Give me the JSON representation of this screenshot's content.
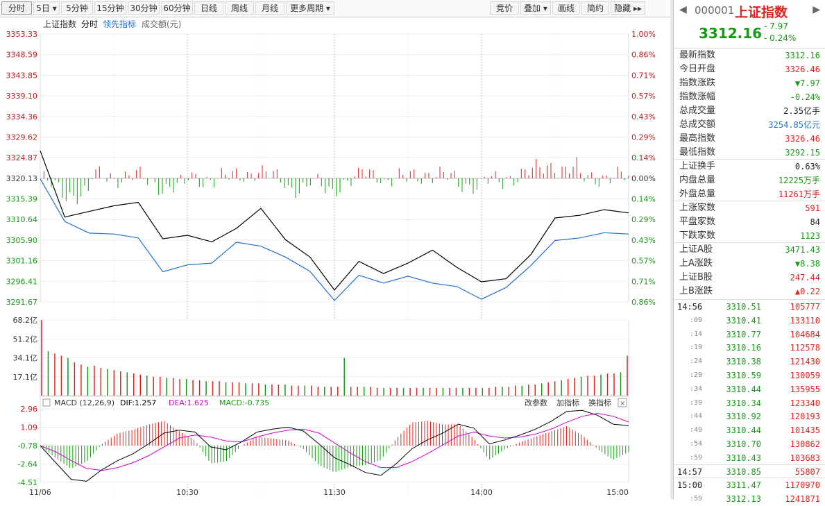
{
  "toolbar": {
    "left": [
      "分时",
      "5日",
      "5分钟",
      "15分钟",
      "30分钟",
      "60分钟",
      "日线",
      "周线",
      "月线",
      "更多周期"
    ],
    "right": [
      "竞价",
      "叠加",
      "画线",
      "简约",
      "隐藏"
    ]
  },
  "legend": {
    "index": "上证指数",
    "fenshi": "分时",
    "lead": "领先指标",
    "amount": "成交额(元)"
  },
  "price_axis": [
    "3353.33",
    "3348.59",
    "3343.85",
    "3339.10",
    "3334.36",
    "3329.62",
    "3324.87",
    "3320.13",
    "3315.39",
    "3310.64",
    "3305.90",
    "3301.16",
    "3296.41",
    "3291.67"
  ],
  "pct_axis": [
    "1.00%",
    "0.86%",
    "0.71%",
    "0.57%",
    "0.43%",
    "0.29%",
    "0.14%",
    "0.00%",
    "0.14%",
    "0.29%",
    "0.43%",
    "0.57%",
    "0.71%",
    "0.86%"
  ],
  "vol_axis": [
    "68.2亿",
    "51.2亿",
    "34.1亿",
    "17.1亿"
  ],
  "macd_header": {
    "name": "MACD (12,26,9)",
    "dif": "DIF:1.257",
    "dea": "DEA:1.625",
    "macd": "MACD:-0.735",
    "btn1": "改参数",
    "btn2": "加指标",
    "btn3": "换指标"
  },
  "macd_axis": [
    "2.96",
    "1.09",
    "-0.78",
    "-2.64",
    "-4.51"
  ],
  "time_axis": [
    "11/06",
    "10:30",
    "11:30",
    "14:00",
    "15:00"
  ],
  "colors": {
    "up": "#e1211d",
    "down": "#149a14",
    "price": "#000000",
    "avg": "#1f6fd0",
    "dea": "#d200d2",
    "axis_red": "#c8161d",
    "axis_green": "#149a14"
  },
  "chart_data": [
    {
      "type": "line",
      "title": "上证指数",
      "series": [
        {
          "name": "上证指数",
          "x": [
            "09:30",
            "09:40",
            "09:50",
            "10:00",
            "10:10",
            "10:20",
            "10:30",
            "10:40",
            "10:50",
            "11:00",
            "11:10",
            "11:20",
            "11:30",
            "13:10",
            "13:20",
            "13:30",
            "13:40",
            "13:50",
            "14:00",
            "14:10",
            "14:20",
            "14:30",
            "14:40",
            "14:50",
            "15:00"
          ],
          "values": [
            3326.46,
            3311.2,
            3312.5,
            3313.8,
            3314.6,
            3306.2,
            3307.0,
            3305.5,
            3308.6,
            3313.2,
            3306.0,
            3302.0,
            3294.4,
            3301.0,
            3298.2,
            3300.6,
            3303.6,
            3299.6,
            3296.3,
            3297.0,
            3302.5,
            3311.0,
            3311.6,
            3312.9,
            3312.16
          ]
        },
        {
          "name": "领先指标",
          "x": [
            "09:30",
            "09:40",
            "09:50",
            "10:00",
            "10:10",
            "10:20",
            "10:30",
            "10:40",
            "10:50",
            "11:00",
            "11:10",
            "11:20",
            "11:30",
            "13:10",
            "13:20",
            "13:30",
            "13:40",
            "13:50",
            "14:00",
            "14:10",
            "14:20",
            "14:30",
            "14:40",
            "14:50",
            "15:00"
          ],
          "values": [
            3320.0,
            3310.2,
            3307.5,
            3307.3,
            3306.4,
            3298.6,
            3300.2,
            3300.6,
            3305.4,
            3304.5,
            3302.0,
            3298.7,
            3292.0,
            3297.8,
            3296.0,
            3297.6,
            3296.0,
            3295.2,
            3292.3,
            3295.0,
            3300.0,
            3305.8,
            3306.4,
            3307.6,
            3307.3
          ]
        }
      ],
      "ylim": [
        3291.67,
        3353.33
      ],
      "prev_close": 3320.13
    },
    {
      "type": "bar",
      "title": "成交额(元)",
      "ylim": [
        0,
        68.2
      ],
      "ylabel": "亿",
      "series": [
        {
          "name": "成交额",
          "values": [
            68.2,
            40,
            38,
            36,
            34,
            30,
            28,
            26,
            27,
            25,
            24,
            23,
            22,
            21,
            20,
            19,
            18,
            17,
            17,
            16,
            16,
            15,
            15,
            14,
            14,
            13,
            13,
            13,
            12,
            12,
            12,
            11,
            11,
            11,
            10,
            10,
            10,
            10,
            9,
            9,
            9,
            9,
            8,
            8,
            8,
            8,
            34,
            8,
            8,
            8,
            8,
            7,
            7,
            7,
            7,
            7,
            7,
            7,
            7,
            7,
            7,
            7,
            7,
            7,
            7,
            7,
            7,
            7,
            7,
            8,
            8,
            8,
            9,
            9,
            10,
            10,
            11,
            12,
            13,
            14,
            15,
            16,
            17,
            18,
            18,
            19,
            20,
            20,
            21,
            36
          ]
        }
      ]
    },
    {
      "type": "line",
      "title": "MACD (12,26,9)",
      "ylim": [
        -4.51,
        2.96
      ],
      "series": [
        {
          "name": "DIF",
          "values": [
            -0.78,
            -2.5,
            -4.2,
            -4.4,
            -3.2,
            -2.3,
            -1.6,
            -0.6,
            0.5,
            0.8,
            0.6,
            -0.9,
            -1.2,
            -0.4,
            0.6,
            0.9,
            1.1,
            0.7,
            -0.6,
            -2.0,
            -2.7,
            -3.5,
            -3.8,
            -2.6,
            -1.1,
            -0.2,
            0.5,
            1.4,
            1.0,
            -0.6,
            -0.2,
            0.3,
            0.9,
            1.7,
            2.7,
            2.8,
            2.3,
            1.4,
            1.257
          ]
        },
        {
          "name": "DEA",
          "values": [
            -0.78,
            -1.4,
            -2.3,
            -3.1,
            -3.3,
            -3.0,
            -2.5,
            -1.8,
            -0.9,
            0.0,
            0.3,
            0.1,
            -0.3,
            -0.4,
            0.1,
            0.5,
            0.8,
            0.9,
            0.5,
            -0.5,
            -1.5,
            -2.4,
            -3.0,
            -3.0,
            -2.4,
            -1.6,
            -0.7,
            0.2,
            0.6,
            0.2,
            0.0,
            0.1,
            0.4,
            0.9,
            1.6,
            2.2,
            2.5,
            2.2,
            1.625
          ]
        }
      ],
      "histogram": [
        0,
        -1.4,
        -2.6,
        -1.8,
        0.2,
        1.4,
        1.8,
        2.4,
        2.8,
        1.6,
        0.6,
        -2.0,
        -1.8,
        0.0,
        1.0,
        0.8,
        0.6,
        -0.4,
        -2.2,
        -3.0,
        -2.4,
        -2.2,
        -1.6,
        0.8,
        2.6,
        2.8,
        2.4,
        2.4,
        0.8,
        -1.6,
        -0.4,
        0.4,
        1.0,
        1.6,
        2.2,
        1.2,
        -0.4,
        -1.6,
        -0.735
      ]
    }
  ],
  "panel": {
    "code": "000001",
    "name": "上证指数",
    "price": "3312.16",
    "change": "- 7.97",
    "change_pct": "- 0.24%",
    "stats": [
      {
        "label": "最新指数",
        "value": "3312.16",
        "color": "green"
      },
      {
        "label": "今日开盘",
        "value": "3326.46",
        "color": "red"
      },
      {
        "label": "指数涨跌",
        "value": "▼7.97",
        "color": "green"
      },
      {
        "label": "指数涨幅",
        "value": "-0.24%",
        "color": "green"
      },
      {
        "label": "总成交量",
        "value": "2.35亿手",
        "color": "black"
      },
      {
        "label": "总成交额",
        "value": "3254.85亿元",
        "color": "blue"
      },
      {
        "label": "最高指数",
        "value": "3326.46",
        "color": "red"
      },
      {
        "label": "最低指数",
        "value": "3292.15",
        "color": "green"
      },
      {
        "label": "上证换手",
        "value": "0.63%",
        "color": "black"
      },
      {
        "label": "内盘总量",
        "value": "12225万手",
        "color": "green"
      },
      {
        "label": "外盘总量",
        "value": "11261万手",
        "color": "red"
      },
      {
        "label": "上涨家数",
        "value": "591",
        "color": "red"
      },
      {
        "label": "平盘家数",
        "value": "84",
        "color": "black"
      },
      {
        "label": "下跌家数",
        "value": "1123",
        "color": "green"
      },
      {
        "label": "上证A股",
        "value": "3471.43",
        "color": "green"
      },
      {
        "label": "上A涨跌",
        "value": "▼8.38",
        "color": "green"
      },
      {
        "label": "上证B股",
        "value": "247.44",
        "color": "red"
      },
      {
        "label": "上B涨跌",
        "value": "▲0.22",
        "color": "red"
      }
    ],
    "ticks": [
      {
        "time": "14:56",
        "price": "3310.51",
        "vol": "105777"
      },
      {
        "time": ":09",
        "price": "3310.41",
        "vol": "133110"
      },
      {
        "time": ":14",
        "price": "3310.77",
        "vol": "104684"
      },
      {
        "time": ":19",
        "price": "3310.16",
        "vol": "112578"
      },
      {
        "time": ":24",
        "price": "3310.38",
        "vol": "121430"
      },
      {
        "time": ":29",
        "price": "3310.59",
        "vol": "130059"
      },
      {
        "time": ":34",
        "price": "3310.44",
        "vol": "135955"
      },
      {
        "time": ":39",
        "price": "3310.34",
        "vol": "123340"
      },
      {
        "time": ":44",
        "price": "3310.92",
        "vol": "120193"
      },
      {
        "time": ":49",
        "price": "3310.44",
        "vol": "101435"
      },
      {
        "time": ":54",
        "price": "3310.70",
        "vol": "130862"
      },
      {
        "time": ":59",
        "price": "3310.43",
        "vol": "103683"
      },
      {
        "time": "14:57",
        "price": "3310.85",
        "vol": "55807"
      },
      {
        "time": "15:00",
        "price": "3311.47",
        "vol": "1170970"
      },
      {
        "time": ":59",
        "price": "3312.13",
        "vol": "1241871"
      }
    ]
  }
}
